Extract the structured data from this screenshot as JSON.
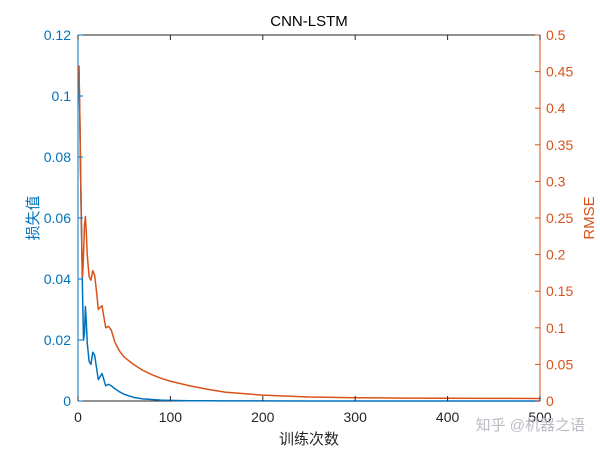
{
  "chart_data": {
    "type": "line",
    "title": "CNN-LSTM",
    "xlabel": "训练次数",
    "ylabel_left": "损失值",
    "ylabel_right": "RMSE",
    "xlim": [
      0,
      500
    ],
    "ylim_left": [
      0,
      0.12
    ],
    "ylim_right": [
      0,
      0.5
    ],
    "xticks": [
      "0",
      "100",
      "200",
      "300",
      "400",
      "500"
    ],
    "yticks_left": [
      "0",
      "0.02",
      "0.04",
      "0.06",
      "0.08",
      "0.1",
      "0.12"
    ],
    "yticks_right": [
      "0",
      "0.05",
      "0.1",
      "0.15",
      "0.2",
      "0.25",
      "0.3",
      "0.35",
      "0.4",
      "0.45",
      "0.5"
    ],
    "grid": false,
    "colors": {
      "loss": "#0072BD",
      "rmse": "#D95319",
      "axis": "#262626"
    },
    "series": [
      {
        "axis": "left",
        "x": [
          1,
          2,
          3,
          4,
          5,
          6,
          7,
          8,
          9,
          10,
          12,
          14,
          16,
          18,
          20,
          22,
          24,
          26,
          28,
          30,
          33,
          36,
          40,
          45,
          50,
          60,
          70,
          80,
          90,
          100,
          120,
          140,
          160,
          200,
          250,
          300,
          350,
          400,
          450,
          500
        ],
        "values": [
          0.11,
          0.092,
          0.07,
          0.052,
          0.034,
          0.02,
          0.022,
          0.031,
          0.026,
          0.019,
          0.013,
          0.012,
          0.016,
          0.015,
          0.011,
          0.007,
          0.008,
          0.009,
          0.007,
          0.005,
          0.0055,
          0.005,
          0.004,
          0.003,
          0.0022,
          0.0012,
          0.0007,
          0.0005,
          0.0003,
          0.0002,
          0.0001,
          0.0001,
          5e-05,
          3e-05,
          2e-05,
          1e-05,
          1e-05,
          1e-05,
          1e-05,
          1e-05
        ]
      },
      {
        "axis": "right",
        "x": [
          1,
          2,
          3,
          4,
          5,
          6,
          7,
          8,
          9,
          10,
          12,
          14,
          16,
          18,
          20,
          22,
          24,
          26,
          28,
          30,
          33,
          36,
          40,
          45,
          50,
          60,
          70,
          80,
          90,
          100,
          120,
          140,
          160,
          200,
          250,
          300,
          350,
          400,
          450,
          500
        ],
        "values": [
          0.458,
          0.39,
          0.3,
          0.22,
          0.17,
          0.2,
          0.24,
          0.252,
          0.23,
          0.2,
          0.17,
          0.165,
          0.178,
          0.172,
          0.15,
          0.125,
          0.128,
          0.13,
          0.115,
          0.1,
          0.102,
          0.097,
          0.08,
          0.068,
          0.06,
          0.05,
          0.042,
          0.036,
          0.031,
          0.027,
          0.021,
          0.016,
          0.012,
          0.008,
          0.0055,
          0.0045,
          0.004,
          0.0038,
          0.0036,
          0.0035
        ]
      }
    ]
  },
  "watermark": "知乎 @机器之语"
}
